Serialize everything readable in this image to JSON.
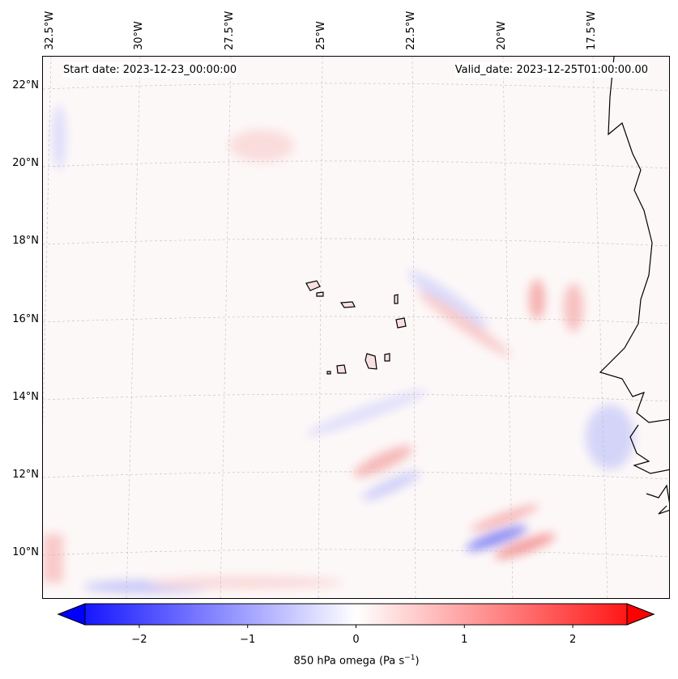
{
  "map": {
    "start_date": "Start date: 2023-12-23_00:00:00",
    "valid_date": "Valid_date: 2023-12-25T01:00:00.00",
    "lon_labels": [
      "32.5°W",
      "30°W",
      "27.5°W",
      "25°W",
      "22.5°W",
      "20°W",
      "17.5°W"
    ],
    "lat_labels": [
      "22°N",
      "20°N",
      "18°N",
      "16°N",
      "14°N",
      "12°N",
      "10°N"
    ]
  },
  "colorbar": {
    "label": "850 hPa omega (Pa s",
    "label_sup": "−1",
    "label_end": ")",
    "ticks": [
      "−2",
      "−1",
      "0",
      "1",
      "2"
    ],
    "tick_values": [
      -2,
      -1,
      0,
      1,
      2
    ],
    "range": [
      -2.5,
      2.5
    ],
    "cmap": "bwr",
    "colors": {
      "low": "#0000ff",
      "mid": "#ffffff",
      "high": "#ff0000"
    }
  }
}
